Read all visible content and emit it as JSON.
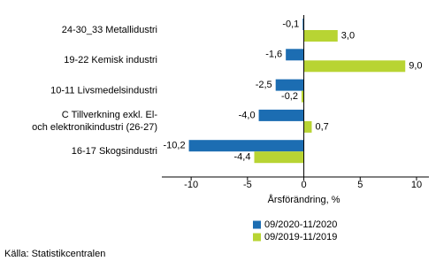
{
  "chart_data": {
    "type": "hbar",
    "categories": [
      "24-30_33 Metallidustri",
      "19-22 Kemisk industri",
      "10-11 Livsmedelsindustri",
      "C Tillverkning exkl. El-\noch elektronikindustri  (26-27)",
      "16-17 Skogsindustri"
    ],
    "series": [
      {
        "name": "09/2020-11/2020",
        "color": "#1c6db2",
        "values": [
          -0.1,
          -1.6,
          -2.5,
          -4.0,
          -10.2
        ],
        "value_labels": [
          "-0,1",
          "-1,6",
          "-2,5",
          "-4,0",
          "-10,2"
        ]
      },
      {
        "name": "09/2019-11/2019",
        "color": "#b8d433",
        "values": [
          3.0,
          9.0,
          -0.2,
          0.7,
          -4.4
        ],
        "value_labels": [
          "3,0",
          "9,0",
          "-0,2",
          "0,7",
          "-4,4"
        ]
      }
    ],
    "xlim": [
      -12.6,
      11.1
    ],
    "xticks": [
      -10,
      -5,
      0,
      5,
      10
    ],
    "xlabel": "Årsförändring, %",
    "source": "Källa: Statistikcentralen"
  }
}
